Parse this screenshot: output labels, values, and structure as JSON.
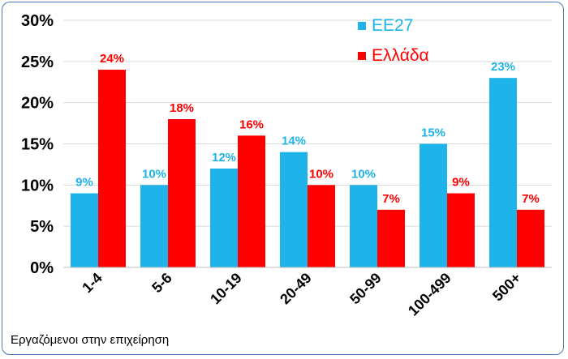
{
  "chart_data": {
    "type": "bar",
    "title": "",
    "xlabel": "Εργαζόμενοι στην επιχείρηση",
    "ylabel": "",
    "ylim": [
      0,
      30
    ],
    "yticks": [
      "0%",
      "5%",
      "10%",
      "15%",
      "20%",
      "25%",
      "30%"
    ],
    "grid": true,
    "legend_position": "top-right",
    "categories": [
      "1-4",
      "5-6",
      "10-19",
      "20-49",
      "50-99",
      "100-499",
      "500+"
    ],
    "series": [
      {
        "name": "ΕΕ27",
        "color": "#1eb4ea",
        "values": [
          9,
          10,
          12,
          14,
          10,
          15,
          23
        ],
        "labels": [
          "9%",
          "10%",
          "12%",
          "14%",
          "10%",
          "15%",
          "23%"
        ]
      },
      {
        "name": "Ελλάδα",
        "color": "#ff0000",
        "values": [
          24,
          18,
          16,
          10,
          7,
          9,
          7
        ],
        "labels": [
          "24%",
          "18%",
          "16%",
          "10%",
          "7%",
          "9%",
          "7%"
        ]
      }
    ]
  }
}
